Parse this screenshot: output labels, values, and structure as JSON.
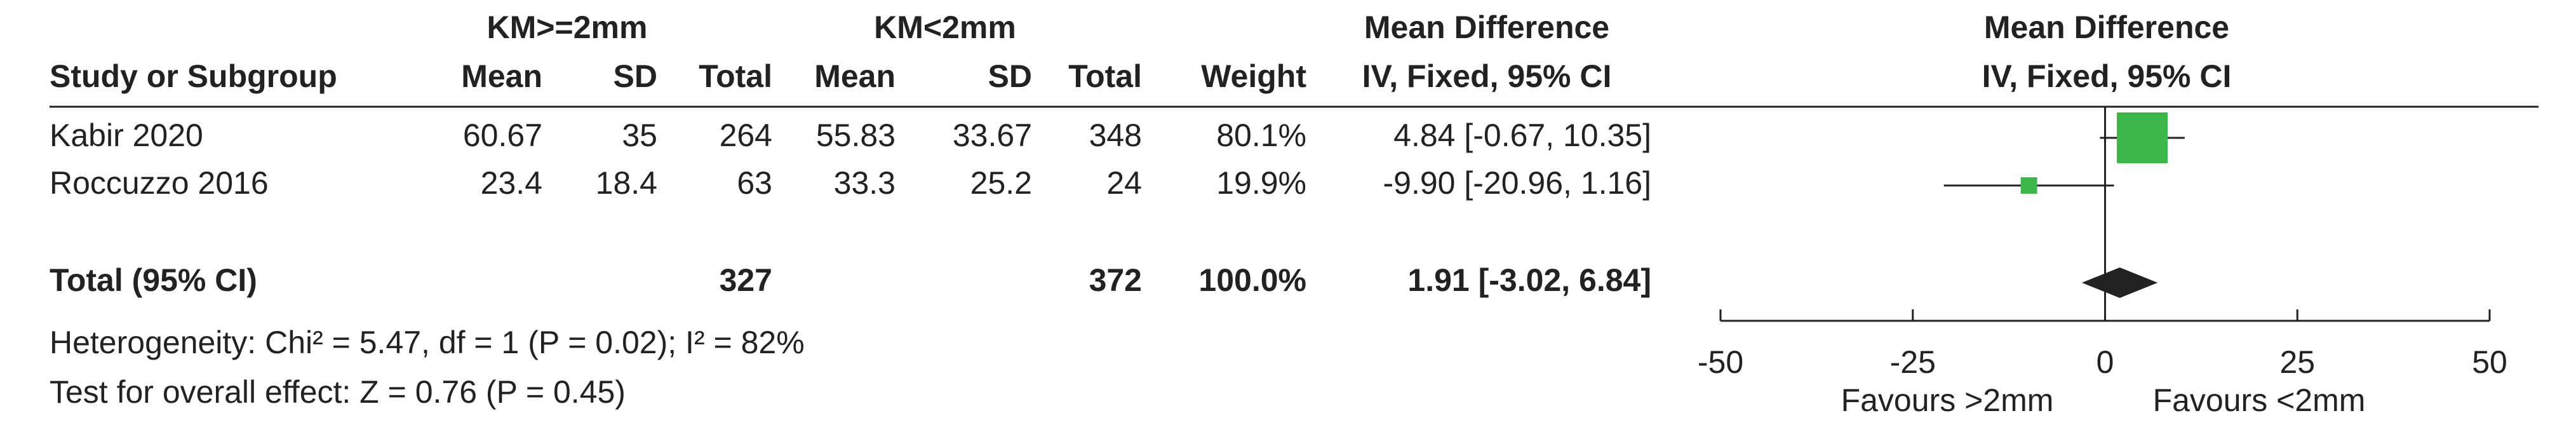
{
  "chart_data": {
    "type": "forest",
    "group_headers": [
      "KM>=2mm",
      "KM<2mm",
      "Mean Difference",
      "Mean Difference"
    ],
    "columns": [
      "Study or Subgroup",
      "Mean",
      "SD",
      "Total",
      "Mean",
      "SD",
      "Total",
      "Weight",
      "IV, Fixed, 95% CI",
      "IV, Fixed, 95% CI"
    ],
    "studies": [
      {
        "name": "Kabir 2020",
        "mean1": 60.67,
        "sd1": 35,
        "total1": 264,
        "mean2": 55.83,
        "sd2": 33.67,
        "total2": 348,
        "weight": 80.1,
        "weight_label": "80.1%",
        "md": 4.84,
        "lower": -0.67,
        "upper": 10.35,
        "ci_label": "4.84 [-0.67, 10.35]"
      },
      {
        "name": "Roccuzzo 2016",
        "mean1": 23.4,
        "sd1": 18.4,
        "total1": 63,
        "mean2": 33.3,
        "sd2": 25.2,
        "total2": 24,
        "weight": 19.9,
        "weight_label": "19.9%",
        "md": -9.9,
        "lower": -20.96,
        "upper": 1.16,
        "ci_label": "-9.90 [-20.96, 1.16]"
      }
    ],
    "total": {
      "name": "Total (95% CI)",
      "total1": 327,
      "total2": 372,
      "weight": 100.0,
      "weight_label": "100.0%",
      "md": 1.91,
      "lower": -3.02,
      "upper": 6.84,
      "ci_label": "1.91 [-3.02, 6.84]"
    },
    "heterogeneity": "Heterogeneity: Chi² = 5.47, df = 1 (P = 0.02); I² = 82%",
    "overall_effect": "Test for overall effect: Z = 0.76 (P = 0.45)",
    "xlim": [
      -50,
      50
    ],
    "xticks": [
      -50,
      -25,
      0,
      25,
      50
    ],
    "xlabels": [
      "Favours >2mm",
      "Favours <2mm"
    ],
    "color": "#3cb54a",
    "diamond_color": "#222222"
  }
}
